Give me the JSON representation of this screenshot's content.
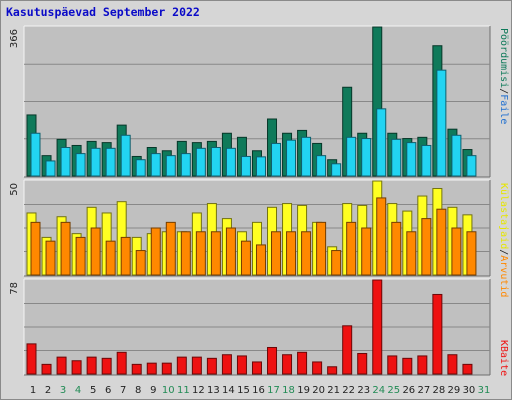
{
  "title": "Kasutuspäevad September 2022",
  "colors": {
    "plot_bg": "#c0c0c0",
    "grid": "#888888",
    "pages": "#0f7a5a",
    "files": "#22d4f2",
    "hits": "#ffff22",
    "visits": "#ff8800",
    "kbytes": "#ee1111",
    "weekend_label": "#228b55",
    "weekday_label": "#222222"
  },
  "legend": {
    "panel1_sep": "/",
    "panel1_files": "Faile",
    "panel1_pages": "Pöördumisi",
    "panel2_hits": "Külastajaid",
    "panel2_sep": "/",
    "panel2_visits": "Arvutid",
    "panel3_kbytes": "KBaite"
  },
  "chart_data": [
    {
      "type": "bar",
      "title": "Kasutuspäevad September 2022",
      "ymax_label": "366",
      "ylim": [
        0,
        366
      ],
      "categories": [
        "1",
        "2",
        "3",
        "4",
        "5",
        "6",
        "7",
        "8",
        "9",
        "10",
        "11",
        "12",
        "13",
        "14",
        "15",
        "16",
        "17",
        "18",
        "19",
        "20",
        "21",
        "22",
        "23",
        "24",
        "25",
        "26",
        "27",
        "28",
        "29",
        "30",
        "31"
      ],
      "weekend_days": [
        "3",
        "4",
        "10",
        "11",
        "17",
        "18",
        "24",
        "25",
        "31"
      ],
      "series": [
        {
          "name": "Pöördumisi",
          "values": [
            150,
            50,
            90,
            75,
            85,
            82,
            125,
            48,
            70,
            62,
            85,
            82,
            85,
            105,
            95,
            62,
            140,
            105,
            112,
            80,
            40,
            218,
            105,
            366,
            105,
            92,
            95,
            320,
            115,
            65,
            0
          ]
        },
        {
          "name": "Faile",
          "values": [
            105,
            37,
            70,
            55,
            68,
            68,
            100,
            40,
            55,
            50,
            55,
            68,
            70,
            68,
            48,
            47,
            80,
            88,
            95,
            50,
            30,
            95,
            92,
            165,
            90,
            82,
            75,
            260,
            100,
            50,
            0
          ]
        }
      ]
    },
    {
      "type": "bar",
      "ymax_label": "50",
      "ylim": [
        0,
        50
      ],
      "categories": [
        "1",
        "2",
        "3",
        "4",
        "5",
        "6",
        "7",
        "8",
        "9",
        "10",
        "11",
        "12",
        "13",
        "14",
        "15",
        "16",
        "17",
        "18",
        "19",
        "20",
        "21",
        "22",
        "23",
        "24",
        "25",
        "26",
        "27",
        "28",
        "29",
        "30",
        "31"
      ],
      "series": [
        {
          "name": "Külastajaid",
          "values": [
            33,
            20,
            31,
            22,
            36,
            33,
            39,
            20,
            22,
            23,
            23,
            33,
            38,
            30,
            23,
            28,
            36,
            38,
            37,
            28,
            15,
            38,
            37,
            50,
            38,
            34,
            42,
            46,
            36,
            32,
            0
          ]
        },
        {
          "name": "Arvutid",
          "values": [
            28,
            18,
            28,
            20,
            25,
            18,
            20,
            13,
            25,
            28,
            23,
            23,
            23,
            25,
            18,
            16,
            23,
            23,
            23,
            28,
            13,
            28,
            25,
            41,
            28,
            23,
            30,
            35,
            25,
            23,
            0
          ]
        }
      ]
    },
    {
      "type": "bar",
      "ymax_label": "78",
      "ylim": [
        0,
        78
      ],
      "categories": [
        "1",
        "2",
        "3",
        "4",
        "5",
        "6",
        "7",
        "8",
        "9",
        "10",
        "11",
        "12",
        "13",
        "14",
        "15",
        "16",
        "17",
        "18",
        "19",
        "20",
        "21",
        "22",
        "23",
        "24",
        "25",
        "26",
        "27",
        "28",
        "29",
        "30",
        "31"
      ],
      "series": [
        {
          "name": "KBaite",
          "values": [
            25,
            8,
            14,
            11,
            14,
            13,
            18,
            8,
            9,
            9,
            14,
            14,
            13,
            16,
            15,
            10,
            22,
            16,
            18,
            10,
            6,
            40,
            17,
            78,
            15,
            13,
            15,
            66,
            16,
            8,
            0
          ]
        }
      ]
    }
  ]
}
